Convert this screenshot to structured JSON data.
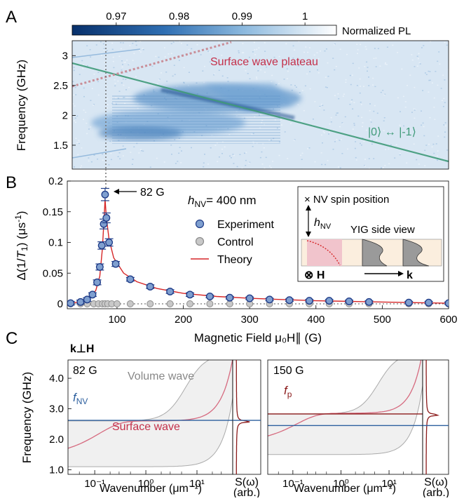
{
  "panel_labels": {
    "a": "A",
    "b": "B",
    "c": "C"
  },
  "colors": {
    "experiment_fill": "#7f9fcf",
    "experiment_edge": "#1f3c88",
    "control_fill": "#c8c8c8",
    "control_edge": "#8c8c8c",
    "theory": "#d62728",
    "surface_wave_label": "#c4304a",
    "nv_line": "#2c5f9e",
    "fp_line": "#8b1a1a",
    "nv_resonance_line": "#3f9a78",
    "plateau_dots": "#c98e98",
    "volume_curve": "#aaaaaa",
    "surface_curve": "#d66a7f",
    "spectrum_curve": "#8b1a1a"
  },
  "chart_data": [
    {
      "id": "A",
      "type": "heatmap",
      "ylabel": "Frequency (GHz)",
      "colorbar": {
        "label": "Normalized PL",
        "ticks": [
          "0.97",
          "0.98",
          "0.99",
          "1"
        ],
        "range": [
          0.963,
          1.005
        ]
      },
      "ylim": [
        1.1,
        3.25
      ],
      "yticks": [
        "1.5",
        "2",
        "2.5",
        "3"
      ],
      "xlim": [
        25,
        600
      ],
      "annotations": {
        "plateau": "Surface wave plateau",
        "transition": "|0⟩ ↔ |-1⟩"
      }
    },
    {
      "id": "B",
      "type": "scatter",
      "xlabel": "Magnetic Field μ₀H∥ (G)",
      "ylabel": "Δ(1/T₁) (μs⁻¹)",
      "xlim": [
        25,
        600
      ],
      "ylim": [
        -0.008,
        0.2
      ],
      "xticks": [
        "100",
        "200",
        "300",
        "400",
        "500",
        "600"
      ],
      "yticks": [
        "0",
        "0.05",
        "0.1",
        "0.15",
        "0.2"
      ],
      "peak_annotation": "82 G",
      "height_label": "h",
      "height_sub": "NV",
      "height_value": "= 400 nm",
      "legend": [
        "Experiment",
        "Control",
        "Theory"
      ],
      "series": [
        {
          "name": "Experiment",
          "x": [
            30,
            45,
            55,
            63,
            70,
            74,
            77,
            80,
            82,
            84,
            88,
            98,
            120,
            150,
            180,
            210,
            240,
            270,
            300,
            330,
            360,
            390,
            420,
            450,
            480,
            540,
            570,
            600
          ],
          "y": [
            0.001,
            0.003,
            0.007,
            0.015,
            0.035,
            0.06,
            0.095,
            0.13,
            0.178,
            0.14,
            0.1,
            0.065,
            0.04,
            0.028,
            0.02,
            0.015,
            0.012,
            0.01,
            0.009,
            0.007,
            0.006,
            0.005,
            0.005,
            0.004,
            0.003,
            0.002,
            0.002,
            0.001
          ],
          "err": [
            0.003,
            0.003,
            0.003,
            0.003,
            0.004,
            0.005,
            0.006,
            0.008,
            0.01,
            0.008,
            0.006,
            0.004,
            0.003,
            0.003,
            0.003,
            0.003,
            0.002,
            0.002,
            0.002,
            0.002,
            0.002,
            0.002,
            0.002,
            0.002,
            0.002,
            0.002,
            0.002,
            0.002
          ]
        },
        {
          "name": "Control",
          "x": [
            30,
            45,
            55,
            65,
            72,
            78,
            82,
            86,
            92,
            100,
            120,
            150,
            180,
            210,
            240,
            270,
            300,
            330,
            360,
            390,
            420,
            450,
            480,
            540,
            570,
            600
          ],
          "y": [
            0,
            0,
            0,
            0,
            0,
            0,
            0,
            0,
            0,
            0,
            0,
            0,
            0,
            0,
            0,
            0,
            0,
            0,
            0,
            0,
            0,
            0,
            0,
            0,
            0,
            0
          ]
        },
        {
          "name": "Theory",
          "x": [
            30,
            50,
            60,
            68,
            74,
            78,
            81,
            82,
            84,
            88,
            95,
            110,
            130,
            160,
            200,
            250,
            300,
            350,
            400,
            450,
            500,
            550,
            600
          ],
          "y": [
            0.001,
            0.004,
            0.01,
            0.022,
            0.045,
            0.09,
            0.15,
            0.17,
            0.14,
            0.105,
            0.075,
            0.05,
            0.036,
            0.025,
            0.017,
            0.012,
            0.009,
            0.007,
            0.005,
            0.004,
            0.003,
            0.002,
            0.001
          ]
        }
      ],
      "inset": {
        "spin_label": "× NV spin position",
        "height_label": "h",
        "height_sub": "NV",
        "side_view": "YIG side view",
        "h_label": "⊗ H",
        "k_label": "k"
      }
    },
    {
      "id": "C1",
      "type": "line",
      "panel_header": "k⊥H",
      "field_label": "82 G",
      "ylabel": "Frequency (GHz)",
      "xlabel": "Wavenumber (μm⁻¹)",
      "xscale": "log",
      "xlim": [
        0.03,
        50
      ],
      "ylim": [
        0.85,
        4.6
      ],
      "xticks": [
        "10⁻¹",
        "10⁰",
        "10¹"
      ],
      "yticks": [
        "1.0",
        "2.0",
        "3.0",
        "4.0"
      ],
      "volume_label": "Volume wave",
      "surface_label": "Surface wave",
      "f_label": "f",
      "f_sub": "NV",
      "f_value": 2.62,
      "spectrum_label": "S(ω)",
      "spectrum_unit": "(arb.)"
    },
    {
      "id": "C2",
      "type": "line",
      "field_label": "150 G",
      "xlabel": "Wavenumber (μm⁻¹)",
      "xscale": "log",
      "xlim": [
        0.03,
        50
      ],
      "ylim": [
        0.85,
        4.6
      ],
      "xticks": [
        "10⁻¹",
        "10⁰",
        "10¹"
      ],
      "f_label": "f",
      "f_sub": "p",
      "fp_value": 2.83,
      "fnv_value": 2.45,
      "spectrum_label": "S(ω)",
      "spectrum_unit": "(arb.)"
    }
  ]
}
